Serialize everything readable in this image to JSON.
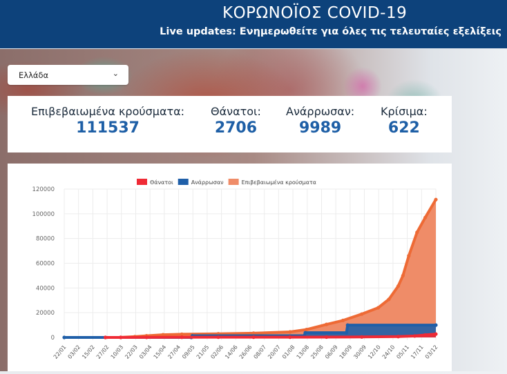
{
  "header": {
    "title": "ΚΟΡΩΝΟΪΟΣ COVID-19",
    "subtitle": "Live updates: Ενημερωθείτε για όλες τις τελευταίες εξελίξεις"
  },
  "country_select": {
    "value": "Ελλάδα",
    "icon": "chevron-down-icon"
  },
  "stats": [
    {
      "label": "Επιβεβαιωμένα κρούσματα:",
      "value": "111537"
    },
    {
      "label": "Θάνατοι:",
      "value": "2706"
    },
    {
      "label": "Ανάρρωσαν:",
      "value": "9989"
    },
    {
      "label": "Κρίσιμα:",
      "value": "622"
    }
  ],
  "chart_data": {
    "type": "area",
    "legend_position": "top",
    "grid": true,
    "ylim": [
      0,
      120000
    ],
    "yticks": [
      0,
      20000,
      40000,
      60000,
      80000,
      100000,
      120000
    ],
    "xlim": [
      "22/01",
      "03/12"
    ],
    "xticks": [
      "22/01",
      "03/02",
      "15/02",
      "27/02",
      "10/03",
      "22/03",
      "03/04",
      "15/04",
      "27/04",
      "09/05",
      "21/05",
      "02/06",
      "14/06",
      "26/06",
      "08/07",
      "20/07",
      "01/08",
      "13/08",
      "25/08",
      "06/09",
      "18/09",
      "30/09",
      "12/10",
      "24/10",
      "05/11",
      "17/11",
      "03/12"
    ],
    "series": [
      {
        "name": "Θάνατοι",
        "color": "#ef2a35",
        "points": [
          [
            "26/02",
            0
          ],
          [
            "10/03",
            0
          ],
          [
            "01/04",
            50
          ],
          [
            "01/05",
            140
          ],
          [
            "01/06",
            175
          ],
          [
            "01/07",
            192
          ],
          [
            "01/08",
            206
          ],
          [
            "01/09",
            266
          ],
          [
            "01/10",
            391
          ],
          [
            "01/11",
            673
          ],
          [
            "15/11",
            1165
          ],
          [
            "24/11",
            2000
          ],
          [
            "03/12",
            2706
          ]
        ]
      },
      {
        "name": "Ανάρρωσαν",
        "color": "#1f5fa8",
        "step": true,
        "points": [
          [
            "22/01",
            0
          ],
          [
            "09/05",
            0
          ],
          [
            "10/05",
            1374
          ],
          [
            "13/08",
            1374
          ],
          [
            "14/08",
            3804
          ],
          [
            "18/09",
            3804
          ],
          [
            "19/09",
            9989
          ],
          [
            "03/12",
            9989
          ]
        ]
      },
      {
        "name": "Επιβεβαιωμένα κρούσματα",
        "color": "#ee6a35",
        "fill": "#ef8c68",
        "points": [
          [
            "26/02",
            1
          ],
          [
            "10/03",
            89
          ],
          [
            "22/03",
            624
          ],
          [
            "01/04",
            1314
          ],
          [
            "15/04",
            2170
          ],
          [
            "01/05",
            2591
          ],
          [
            "01/06",
            2917
          ],
          [
            "01/07",
            3432
          ],
          [
            "01/08",
            4477
          ],
          [
            "15/08",
            6381
          ],
          [
            "01/09",
            10524
          ],
          [
            "15/09",
            13730
          ],
          [
            "01/10",
            18886
          ],
          [
            "15/10",
            24000
          ],
          [
            "24/10",
            30782
          ],
          [
            "01/11",
            41527
          ],
          [
            "05/11",
            50000
          ],
          [
            "10/11",
            66000
          ],
          [
            "17/11",
            85000
          ],
          [
            "24/11",
            97000
          ],
          [
            "03/12",
            111537
          ]
        ]
      }
    ]
  }
}
